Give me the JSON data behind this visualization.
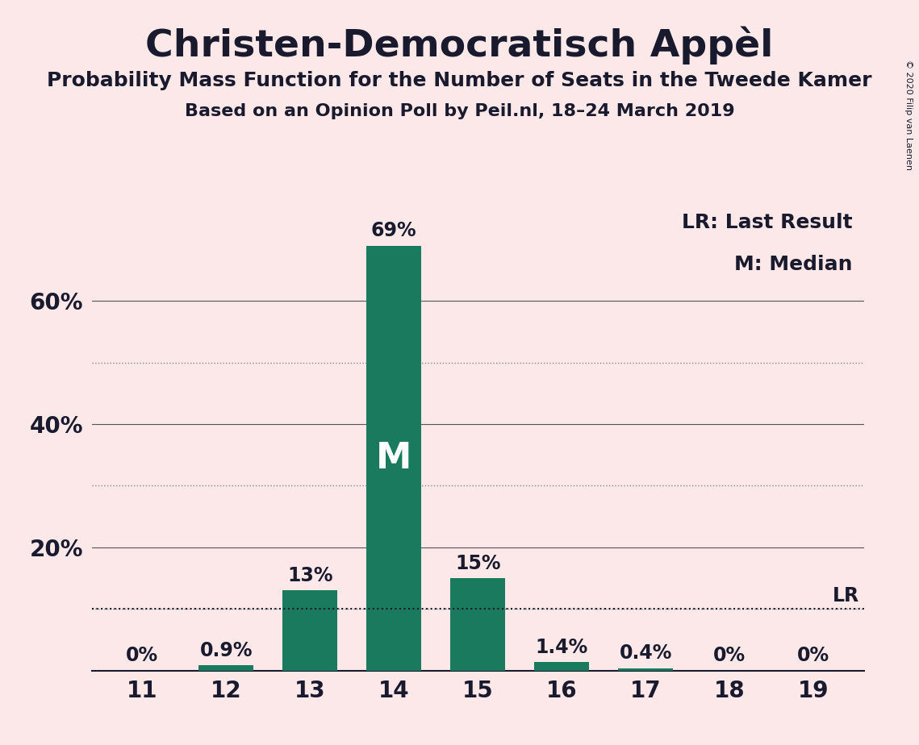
{
  "title": "Christen-Democratisch Appèl",
  "subtitle1": "Probability Mass Function for the Number of Seats in the Tweede Kamer",
  "subtitle2": "Based on an Opinion Poll by Peil.nl, 18–24 March 2019",
  "copyright": "© 2020 Filip van Laenen",
  "categories": [
    11,
    12,
    13,
    14,
    15,
    16,
    17,
    18,
    19
  ],
  "values": [
    0.0,
    0.9,
    13.0,
    69.0,
    15.0,
    1.4,
    0.4,
    0.0,
    0.0
  ],
  "bar_color": "#1a7a5e",
  "background_color": "#fce8e8",
  "text_color": "#1a1a2e",
  "lr_value": 10.0,
  "median_bar": 14,
  "legend_lr": "LR: Last Result",
  "legend_m": "M: Median",
  "ylim": [
    0,
    75
  ],
  "solid_gridlines": [
    20,
    40,
    60
  ],
  "dotted_gridlines": [
    10,
    30,
    50
  ],
  "ytick_labels_vals": [
    20,
    40,
    60
  ],
  "ytick_labels_strs": [
    "20%",
    "40%",
    "60%"
  ],
  "grid_color": "#555555",
  "dotted_grid_color": "#888888",
  "lr_line_color": "#1a1a2e",
  "title_fontsize": 34,
  "subtitle1_fontsize": 18,
  "subtitle2_fontsize": 16,
  "tick_fontsize": 20,
  "label_fontsize": 17,
  "legend_fontsize": 18,
  "M_fontsize": 32,
  "LR_fontsize": 17
}
